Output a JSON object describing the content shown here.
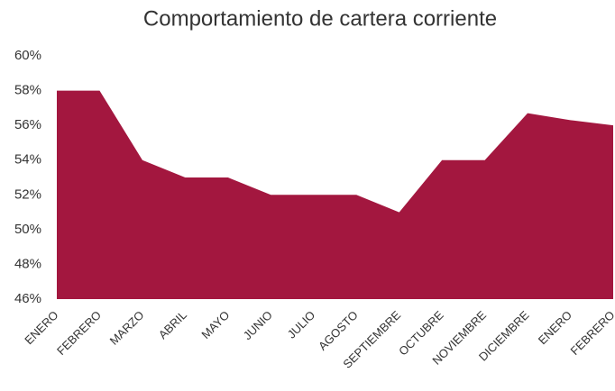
{
  "chart_data": {
    "type": "area",
    "title": "Comportamiento de cartera corriente",
    "categories": [
      "ENERO",
      "FEBRERO",
      "MARZO",
      "ABRIL",
      "MAYO",
      "JUNIO",
      "JULIO",
      "AGOSTO",
      "SEPTIEMBRE",
      "OCTUBRE",
      "NOVIEMBRE",
      "DICIEMBRE",
      "ENERO",
      "FEBRERO"
    ],
    "values": [
      58,
      58,
      54,
      53,
      53,
      52,
      52,
      52,
      51,
      54,
      54,
      56.7,
      56.3,
      56
    ],
    "color": "#a3173f",
    "ylim": [
      46,
      60
    ],
    "yticks": [
      {
        "value": 46,
        "label": "46%"
      },
      {
        "value": 48,
        "label": "48%"
      },
      {
        "value": 50,
        "label": "50%"
      },
      {
        "value": 52,
        "label": "52%"
      },
      {
        "value": 54,
        "label": "54%"
      },
      {
        "value": 56,
        "label": "56%"
      },
      {
        "value": 58,
        "label": "58%"
      },
      {
        "value": 60,
        "label": "60%"
      }
    ],
    "grid": false
  }
}
